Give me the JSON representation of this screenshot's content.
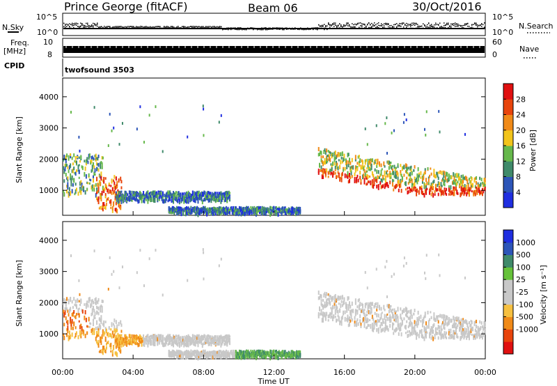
{
  "header": {
    "station": "Prince George (fitACF)",
    "beam": "Beam 06",
    "date": "30/Oct/2016"
  },
  "top_panels": {
    "nsky_label": "N.Sky",
    "nsearch_label": "N.Search",
    "freq_label_line1": "Freq.",
    "freq_label_line2": "[MHz]",
    "nave_label": "Nave",
    "cpid_label": "CPID",
    "cpid_value": "twofsound 3503",
    "nsky_ticks": [
      "10^5",
      "10^0"
    ],
    "nsearch_ticks": [
      "10^5",
      "10^0"
    ],
    "freq_ticks": [
      "10",
      "8"
    ],
    "nave_ticks": [
      "60",
      "0"
    ]
  },
  "colors": {
    "power_scale": [
      "#1f2ee0",
      "#2c55b8",
      "#3f8a6a",
      "#66b84b",
      "#f2c41a",
      "#f08a18",
      "#e8440c",
      "#e01010"
    ],
    "velocity_scale": [
      "#e01010",
      "#e8440c",
      "#f08a18",
      "#f6c040",
      "#c8c8c8",
      "#c8c8c8",
      "#66c23a",
      "#3f8a6a",
      "#2c55b8",
      "#1f2ee0"
    ]
  },
  "chart_data": [
    {
      "type": "heatmap",
      "title": "Power",
      "xlabel": "",
      "ylabel": "Slant Range [km]",
      "x_ticks": [
        "00:00",
        "04:00",
        "08:00",
        "12:00",
        "16:00",
        "20:00",
        "00:00"
      ],
      "y_ticks": [
        "1000",
        "2000",
        "3000",
        "4000"
      ],
      "ylim": [
        200,
        4600
      ],
      "colorbar_label": "Power [dB]",
      "colorbar_ticks": [
        "4",
        "8",
        "12",
        "16",
        "20",
        "24",
        "28"
      ],
      "echo_regions": [
        {
          "t_start": 0.0,
          "t_end": 2.3,
          "range_low": 900,
          "range_high": 2200,
          "level": 3
        },
        {
          "t_start": 1.9,
          "t_end": 3.3,
          "range_low": 400,
          "range_high": 1500,
          "level": 6
        },
        {
          "t_start": 3.0,
          "t_end": 9.5,
          "range_low": 700,
          "range_high": 1000,
          "level": 2
        },
        {
          "t_start": 6.0,
          "t_end": 13.5,
          "range_low": 300,
          "range_high": 500,
          "level": 2
        },
        {
          "t_start": 14.5,
          "t_end": 24.0,
          "range_low": 1000,
          "range_high": 2400,
          "level": 4
        }
      ]
    },
    {
      "type": "heatmap",
      "title": "Velocity",
      "xlabel": "Time UT",
      "ylabel": "Slant Range [km]",
      "x_ticks": [
        "00:00",
        "04:00",
        "08:00",
        "12:00",
        "16:00",
        "20:00",
        "00:00"
      ],
      "y_ticks": [
        "1000",
        "2000",
        "3000",
        "4000"
      ],
      "ylim": [
        200,
        4600
      ],
      "colorbar_label": "Velocity [m s⁻¹]",
      "colorbar_ticks": [
        "1000",
        "500",
        "100",
        "25",
        "-25",
        "-100",
        "-500",
        "-1000"
      ]
    }
  ]
}
